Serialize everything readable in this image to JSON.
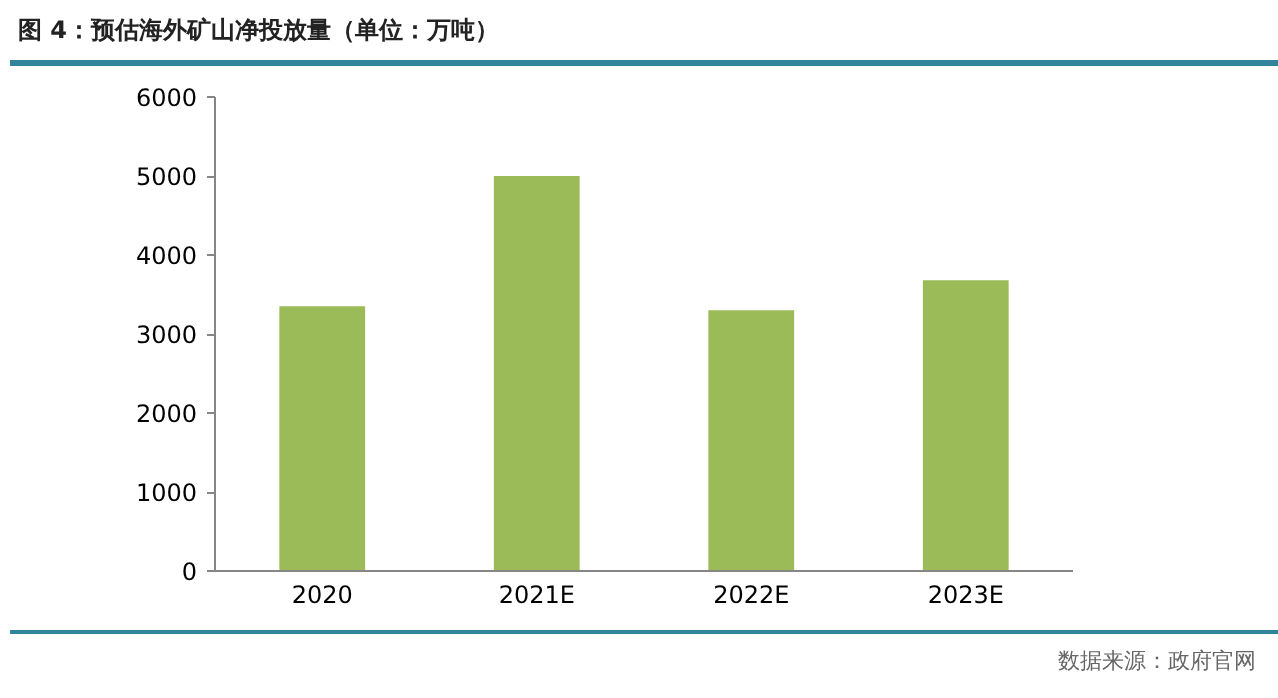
{
  "chart_data": {
    "type": "bar",
    "title": "图 4：预估海外矿山净投放量（单位：万吨）",
    "categories": [
      "2020",
      "2021E",
      "2022E",
      "2023E"
    ],
    "values": [
      3350,
      5000,
      3300,
      3680
    ],
    "color": "#9bbb59",
    "ylim": [
      0,
      6000
    ],
    "yticks": [
      0,
      1000,
      2000,
      3000,
      4000,
      5000,
      6000
    ],
    "grid": false,
    "annotations": [
      "数据来源：政府官网"
    ]
  }
}
